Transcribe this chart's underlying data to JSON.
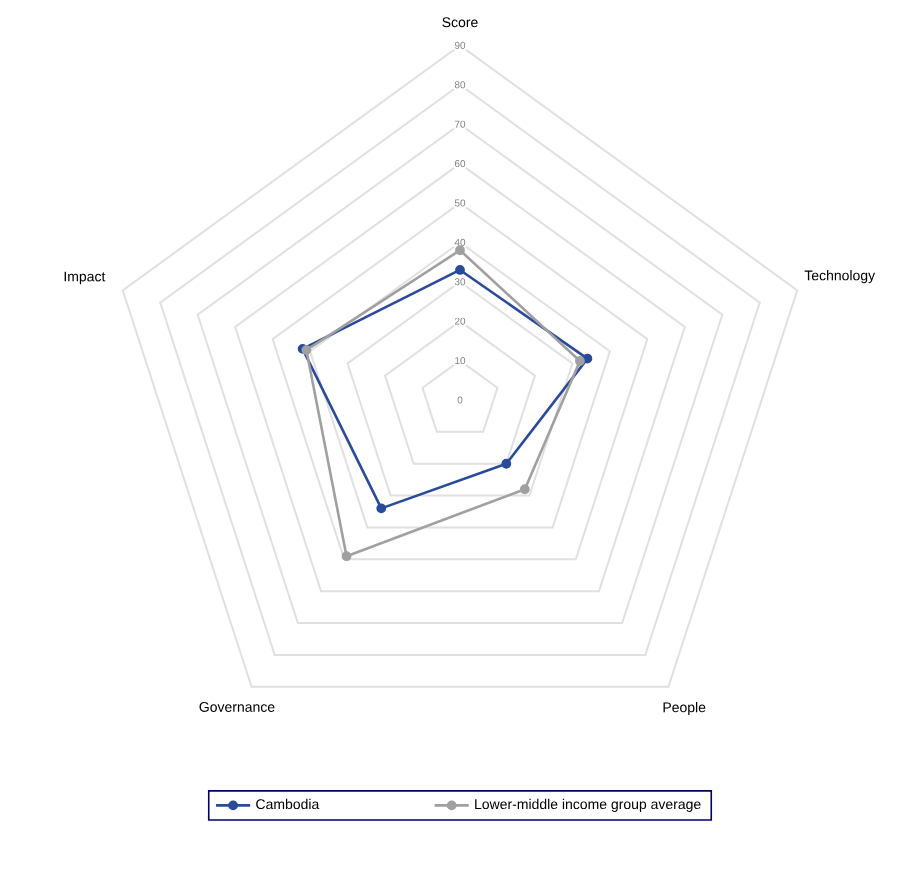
{
  "chart_data": {
    "type": "radar",
    "categories": [
      "Score",
      "Technology",
      "People",
      "Governance",
      "Impact"
    ],
    "series": [
      {
        "name": "Cambodia",
        "color": "#2a4a9a",
        "values": [
          33,
          34,
          20,
          34,
          42
        ]
      },
      {
        "name": "Lower-middle income group average",
        "color": "#a0a0a0",
        "values": [
          38,
          32,
          28,
          49,
          41
        ]
      }
    ],
    "ylim": [
      0,
      90
    ],
    "yticks": [
      0,
      10,
      20,
      30,
      40,
      50,
      60,
      70,
      80,
      90
    ],
    "grid": true,
    "legend": "bottom",
    "marker": "circle"
  }
}
